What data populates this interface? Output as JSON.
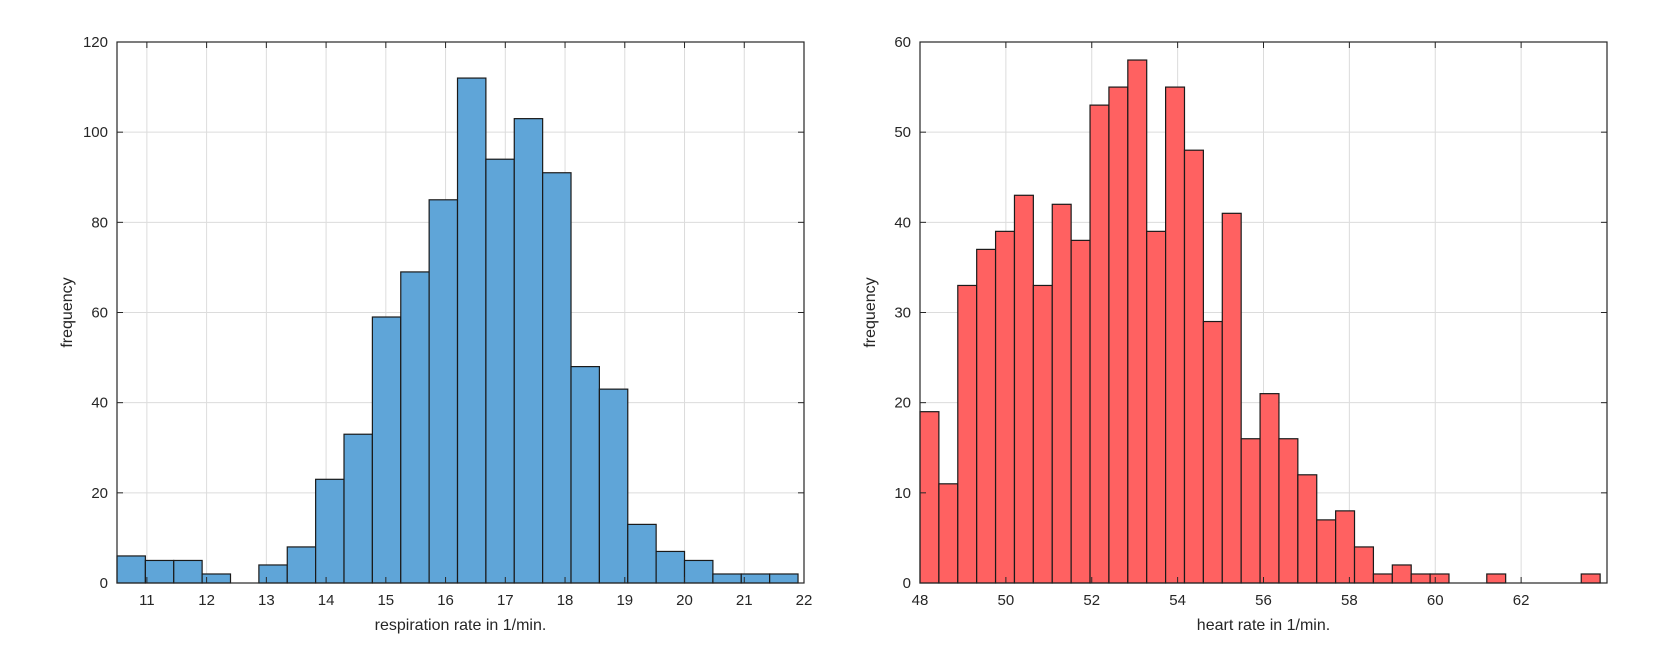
{
  "chart_data": [
    {
      "type": "bar",
      "xlabel": "respiration rate in 1/min.",
      "ylabel": "frequency",
      "xlim": [
        10.5,
        22
      ],
      "ylim": [
        0,
        120
      ],
      "xticks": [
        11,
        12,
        13,
        14,
        15,
        16,
        17,
        18,
        19,
        20,
        21,
        22
      ],
      "yticks": [
        0,
        20,
        40,
        60,
        80,
        100,
        120
      ],
      "grid": true,
      "bin_start": 10.5,
      "bin_width": 0.475,
      "values": [
        6,
        5,
        5,
        2,
        0,
        4,
        8,
        23,
        33,
        59,
        69,
        85,
        112,
        94,
        103,
        91,
        48,
        43,
        13,
        7,
        5,
        2,
        2,
        2
      ],
      "color": "#5fa5d8"
    },
    {
      "type": "bar",
      "xlabel": "heart rate in 1/min.",
      "ylabel": "frequency",
      "xlim": [
        48,
        64
      ],
      "ylim": [
        0,
        60
      ],
      "xticks": [
        48,
        50,
        52,
        54,
        56,
        58,
        60,
        62
      ],
      "yticks": [
        0,
        10,
        20,
        30,
        40,
        50,
        60
      ],
      "grid": true,
      "bin_start": 48,
      "bin_width": 0.44,
      "values": [
        19,
        11,
        33,
        37,
        39,
        43,
        33,
        42,
        38,
        53,
        55,
        58,
        39,
        55,
        48,
        29,
        41,
        16,
        21,
        16,
        12,
        7,
        8,
        4,
        1,
        2,
        1,
        1,
        0,
        0,
        1,
        0,
        0,
        0,
        0,
        1
      ],
      "color": "#ff6161"
    }
  ]
}
